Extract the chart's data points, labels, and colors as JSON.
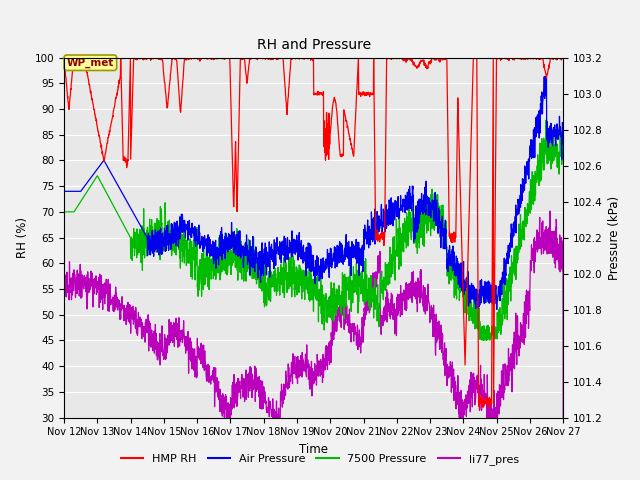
{
  "title": "RH and Pressure",
  "xlabel": "Time",
  "ylabel_left": "RH (%)",
  "ylabel_right": "Pressure (kPa)",
  "ylim_left": [
    30,
    100
  ],
  "ylim_right": [
    101.2,
    103.2
  ],
  "x_ticks_labels": [
    "Nov 12",
    "Nov 13",
    "Nov 14",
    "Nov 15",
    "Nov 16",
    "Nov 17",
    "Nov 18",
    "Nov 19",
    "Nov 20",
    "Nov 21",
    "Nov 22",
    "Nov 23",
    "Nov 24",
    "Nov 25",
    "Nov 26",
    "Nov 27"
  ],
  "annotation_text": "WP_met",
  "colors": {
    "hmp_rh": "#FF0000",
    "air_pressure": "#0000EE",
    "pressure_7500": "#00BB00",
    "li77_pres": "#BB00BB"
  },
  "legend_labels": [
    "HMP RH",
    "Air Pressure",
    "7500 Pressure",
    "li77_pres"
  ],
  "bg_color": "#E8E8E8",
  "fig_bg": "#F2F2F2",
  "grid_color": "#FFFFFF",
  "yticks_left": [
    30,
    35,
    40,
    45,
    50,
    55,
    60,
    65,
    70,
    75,
    80,
    85,
    90,
    95,
    100
  ],
  "yticks_right": [
    101.2,
    101.4,
    101.6,
    101.8,
    102.0,
    102.2,
    102.4,
    102.6,
    102.8,
    103.0,
    103.2
  ]
}
